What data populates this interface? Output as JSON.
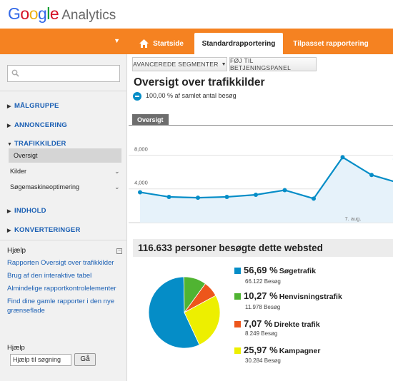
{
  "app": {
    "logo_text": "Google",
    "product": "Analytics"
  },
  "nav": {
    "tabs": [
      {
        "label": "Startside",
        "icon": "home-icon"
      },
      {
        "label": "Standardrapportering"
      },
      {
        "label": "Tilpasset rapportering"
      }
    ]
  },
  "colors": {
    "orange": "#f58221",
    "series": "#058dc7",
    "link": "#1a5fb4"
  },
  "sidebar": {
    "search_placeholder": "",
    "sections": [
      {
        "label": "MÅLGRUPPE",
        "state": "collapsed"
      },
      {
        "label": "ANNONCERING",
        "state": "collapsed"
      },
      {
        "label": "TRAFIKKILDER",
        "state": "expanded",
        "items": [
          {
            "label": "Oversigt",
            "selected": true
          },
          {
            "label": "Kilder"
          },
          {
            "label": "Søgemaskineoptimering"
          }
        ]
      },
      {
        "label": "INDHOLD",
        "state": "collapsed"
      },
      {
        "label": "KONVERTERINGER",
        "state": "collapsed"
      }
    ],
    "help": {
      "title": "Hjælp",
      "links": [
        "Rapporten Oversigt over trafikkilder",
        "Brug af den interaktive tabel",
        "Almindelige rapportkontrolelementer",
        "Find dine gamle rapporter i den nye grænseflade"
      ],
      "search_title": "Hjælp",
      "search_value": "Hjælp til søgning",
      "go_label": "Gå"
    }
  },
  "toolbar": {
    "segments_label": "AVANCEREDE SEGMENTER",
    "dashboard_label": "FØJ TIL BETJENINGSPANEL"
  },
  "report": {
    "title": "Oversigt over trafikkilder",
    "segment_text": "100,00 % af samlet antal besøg",
    "tab_label": "Oversigt",
    "summary": "116.633 personer besøgte dette websted"
  },
  "chart_data": [
    {
      "type": "area",
      "y_ticks": [
        "8,000",
        "4,000"
      ],
      "ylim": [
        0,
        11000
      ],
      "x_tick_label": "7. aug.",
      "x_tick_index": 7,
      "values": [
        3600,
        3050,
        2950,
        3050,
        3300,
        3850,
        2850,
        7750,
        5650,
        4650,
        7000
      ],
      "grid": true,
      "color": "#058dc7"
    },
    {
      "type": "pie",
      "slices": [
        {
          "pct": "56,69 %",
          "value": 56.69,
          "label": "Søgetrafik",
          "count": "66.122 Besøg",
          "color": "#058dc7"
        },
        {
          "pct": "10,27 %",
          "value": 10.27,
          "label": "Henvisningstrafik",
          "count": "11.978 Besøg",
          "color": "#50b432"
        },
        {
          "pct": "7,07 %",
          "value": 7.07,
          "label": "Direkte trafik",
          "count": "8.249 Besøg",
          "color": "#ed561b"
        },
        {
          "pct": "25,97 %",
          "value": 25.97,
          "label": "Kampagner",
          "count": "30.284 Besøg",
          "color": "#edef00"
        }
      ]
    }
  ]
}
